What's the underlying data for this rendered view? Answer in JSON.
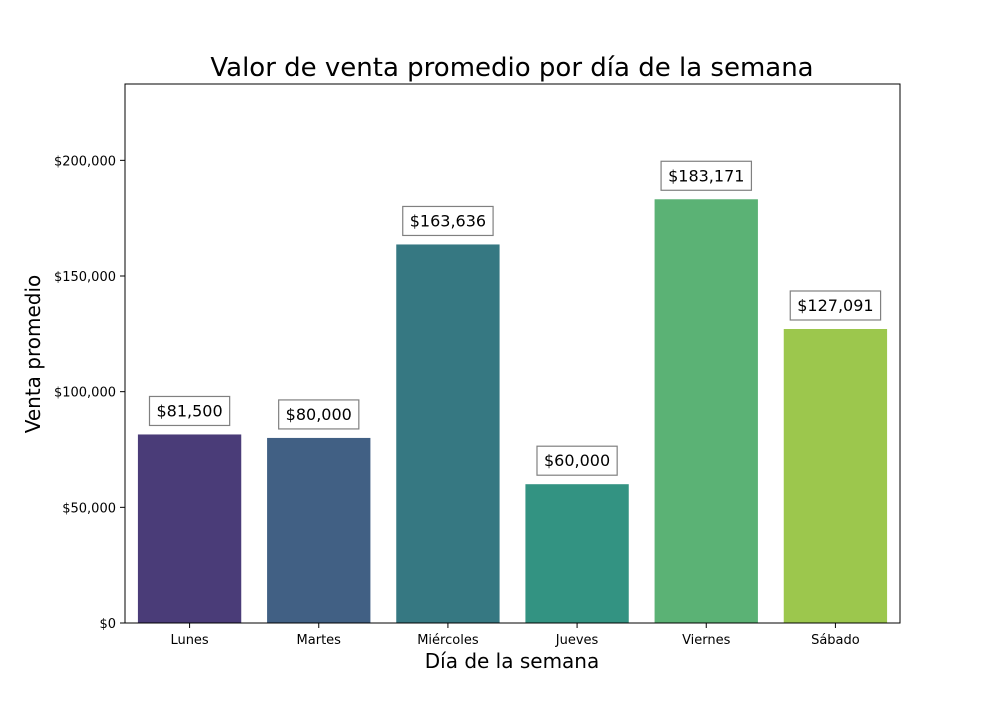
{
  "chart_data": {
    "type": "bar",
    "title": "Valor de venta promedio por día de la semana",
    "xlabel": "Día de la semana",
    "ylabel": "Venta promedio",
    "categories": [
      "Lunes",
      "Martes",
      "Miércoles",
      "Jueves",
      "Viernes",
      "Sábado"
    ],
    "values": [
      81500,
      80000,
      163636,
      60000,
      183171,
      127091
    ],
    "value_labels": [
      "$81,500",
      "$80,000",
      "$163,636",
      "$60,000",
      "$183,171",
      "$127,091"
    ],
    "colors": [
      "#4a3c78",
      "#416084",
      "#367882",
      "#339382",
      "#5bb275",
      "#9cc74d"
    ],
    "ylim": [
      0,
      233000
    ],
    "yticks": [
      0,
      50000,
      100000,
      150000,
      200000
    ],
    "ytick_labels": [
      "$0",
      "$50,000",
      "$100,000",
      "$150,000",
      "$200,000"
    ],
    "grid": false,
    "legend": "none"
  }
}
